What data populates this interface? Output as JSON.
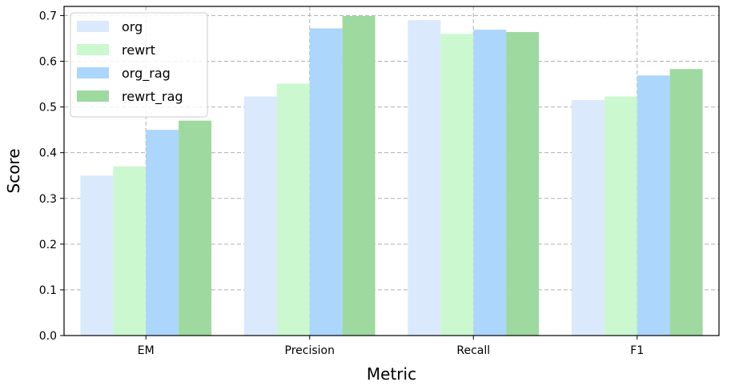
{
  "chart_data": {
    "type": "bar",
    "title": "",
    "xlabel": "Metric",
    "ylabel": "Score",
    "categories": [
      "EM",
      "Precision",
      "Recall",
      "F1"
    ],
    "series": [
      {
        "name": "org",
        "color": "#dae9fc",
        "values": [
          0.35,
          0.523,
          0.69,
          0.515
        ]
      },
      {
        "name": "rewrt",
        "color": "#ccf8d0",
        "values": [
          0.37,
          0.551,
          0.66,
          0.523
        ]
      },
      {
        "name": "org_rag",
        "color": "#acd6fb",
        "values": [
          0.45,
          0.672,
          0.669,
          0.569
        ]
      },
      {
        "name": "rewrt_rag",
        "color": "#9ed99f",
        "values": [
          0.47,
          0.699,
          0.664,
          0.583
        ]
      }
    ],
    "ylim": [
      0,
      0.72
    ],
    "yticks": [
      "0.0",
      "0.1",
      "0.2",
      "0.3",
      "0.4",
      "0.5",
      "0.6",
      "0.7"
    ],
    "grid": true,
    "legend_position": "top-left"
  }
}
